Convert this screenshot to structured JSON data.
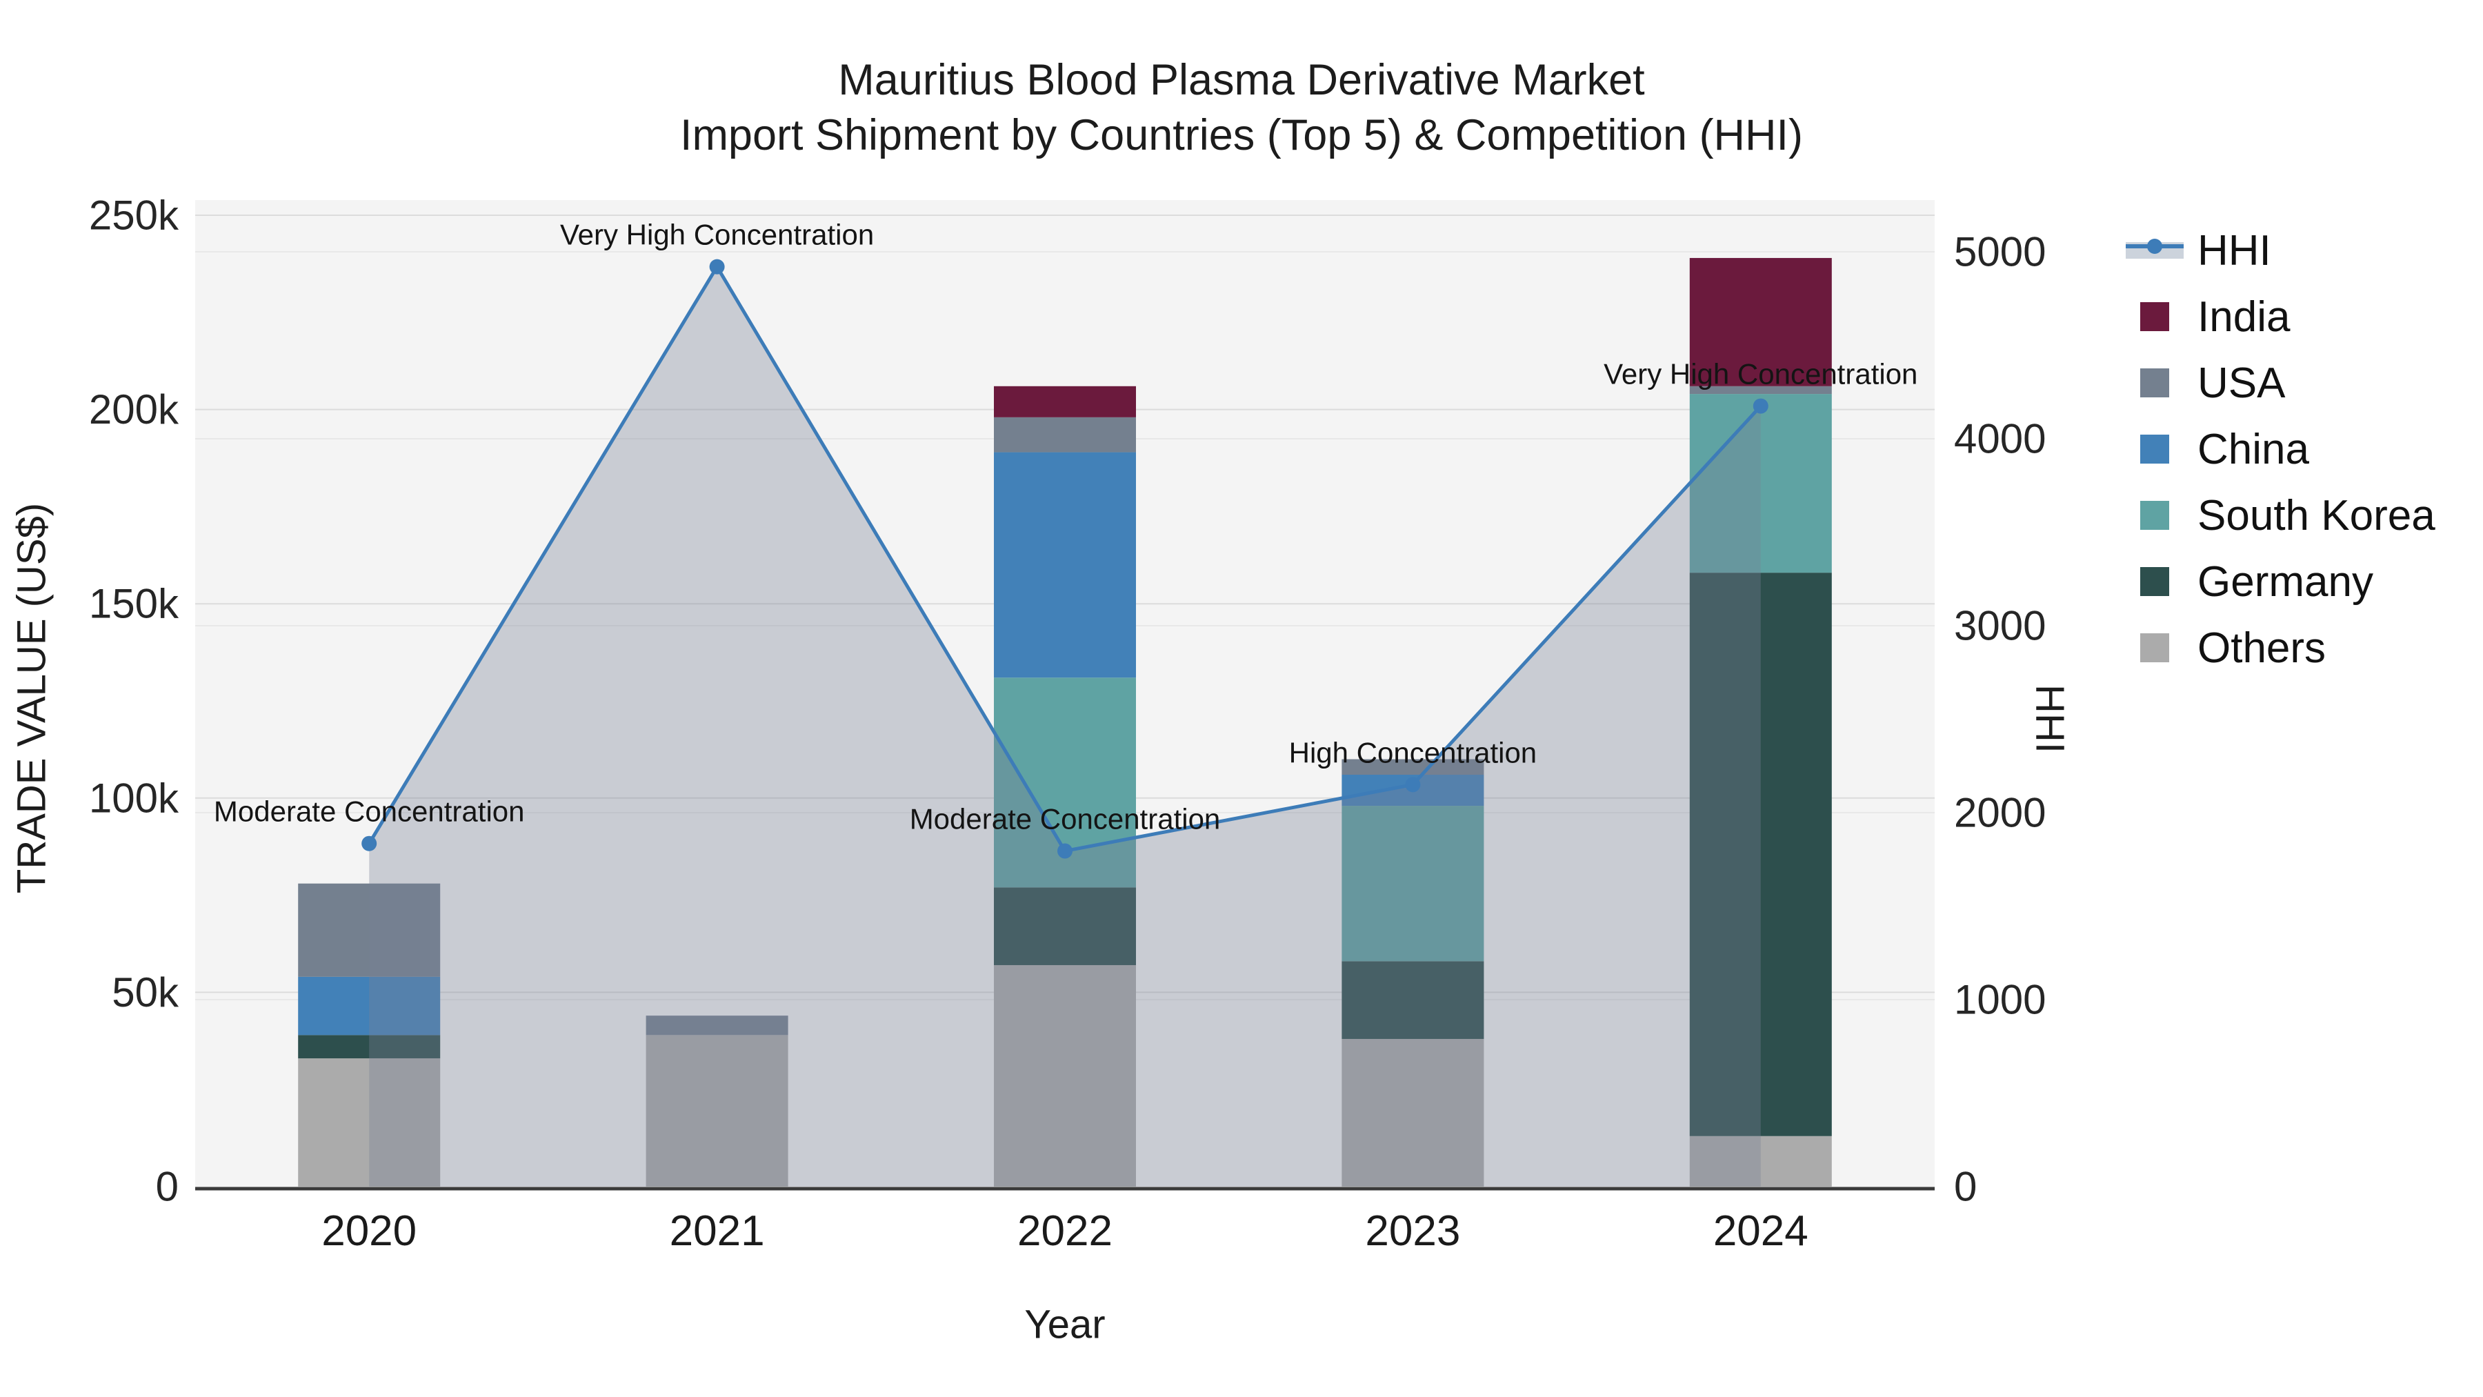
{
  "figure": {
    "title_line1": "Mauritius Blood Plasma Derivative Market",
    "title_line2": "Import Shipment by Countries (Top 5) & Competition (HHI)"
  },
  "axes": {
    "left_title": "TRADE VALUE (US$)",
    "right_title": "HHI",
    "x_title": "Year"
  },
  "legend": {
    "position": "right",
    "items": [
      {
        "label": "HHI",
        "kind": "line",
        "color": "#3d7cb8",
        "band_color": "#ccd3dc"
      },
      {
        "label": "India",
        "kind": "swatch",
        "color": "#6b1a3d"
      },
      {
        "label": "USA",
        "kind": "swatch",
        "color": "#74808f"
      },
      {
        "label": "China",
        "kind": "swatch",
        "color": "#4281b8"
      },
      {
        "label": "South Korea",
        "kind": "swatch",
        "color": "#5fa3a3"
      },
      {
        "label": "Germany",
        "kind": "swatch",
        "color": "#2d4f4d"
      },
      {
        "label": "Others",
        "kind": "swatch",
        "color": "#ababab"
      }
    ]
  },
  "chart_data": {
    "type": "combo: stacked bar + line+area (secondary axis)",
    "categories": [
      "2020",
      "2021",
      "2022",
      "2023",
      "2024"
    ],
    "stack_order_bottom_to_top": [
      "Others",
      "Germany",
      "South Korea",
      "China",
      "USA",
      "India"
    ],
    "bar_unit": "US$",
    "series": [
      {
        "name": "India",
        "type": "bar",
        "color": "#6b1a3d",
        "values": [
          0,
          0,
          8000,
          0,
          33000
        ]
      },
      {
        "name": "USA",
        "type": "bar",
        "color": "#74808f",
        "values": [
          24000,
          5000,
          9000,
          4000,
          2000
        ]
      },
      {
        "name": "China",
        "type": "bar",
        "color": "#4281b8",
        "values": [
          15000,
          0,
          58000,
          8000,
          0
        ]
      },
      {
        "name": "South Korea",
        "type": "bar",
        "color": "#5fa3a3",
        "values": [
          0,
          0,
          54000,
          40000,
          46000
        ]
      },
      {
        "name": "Germany",
        "type": "bar",
        "color": "#2d4f4d",
        "values": [
          6000,
          0,
          20000,
          20000,
          145000
        ]
      },
      {
        "name": "Others",
        "type": "bar",
        "color": "#ababab",
        "values": [
          33000,
          39000,
          57000,
          38000,
          13000
        ]
      },
      {
        "name": "HHI",
        "type": "line+area",
        "axis": "right",
        "color": "#3d7cb8",
        "area_color": "rgba(120,130,150,0.35)",
        "values": [
          1835,
          4920,
          1795,
          2150,
          4175
        ]
      }
    ],
    "bar_totals": [
      78000,
      44000,
      206000,
      110000,
      239000
    ],
    "annotations": [
      {
        "year": "2020",
        "text": "Moderate Concentration"
      },
      {
        "year": "2021",
        "text": "Very High Concentration"
      },
      {
        "year": "2022",
        "text": "Moderate Concentration"
      },
      {
        "year": "2023",
        "text": "High Concentration"
      },
      {
        "year": "2024",
        "text": "Very High Concentration"
      }
    ],
    "y_left": {
      "label": "TRADE VALUE (US$)",
      "scale_max": 250000,
      "range": [
        0,
        253000
      ],
      "ticks": [
        {
          "value": 0,
          "label": "0"
        },
        {
          "value": 50000,
          "label": "50k"
        },
        {
          "value": 100000,
          "label": "100k"
        },
        {
          "value": 150000,
          "label": "150k"
        },
        {
          "value": 200000,
          "label": "200k"
        },
        {
          "value": 250000,
          "label": "250k"
        }
      ]
    },
    "y_right": {
      "label": "HHI",
      "scale_max": 5000,
      "range": [
        0,
        5250
      ],
      "ticks": [
        {
          "value": 0,
          "label": "0"
        },
        {
          "value": 1000,
          "label": "1000"
        },
        {
          "value": 2000,
          "label": "2000"
        },
        {
          "value": 3000,
          "label": "3000"
        },
        {
          "value": 4000,
          "label": "4000"
        },
        {
          "value": 5000,
          "label": "5000"
        }
      ]
    },
    "grid": true,
    "plot_bg": "#f4f4f4",
    "grid_color_left": "#dcdcdc",
    "grid_color_right": "#e8e8e8",
    "axis_line_color": "#3a3a3a"
  }
}
